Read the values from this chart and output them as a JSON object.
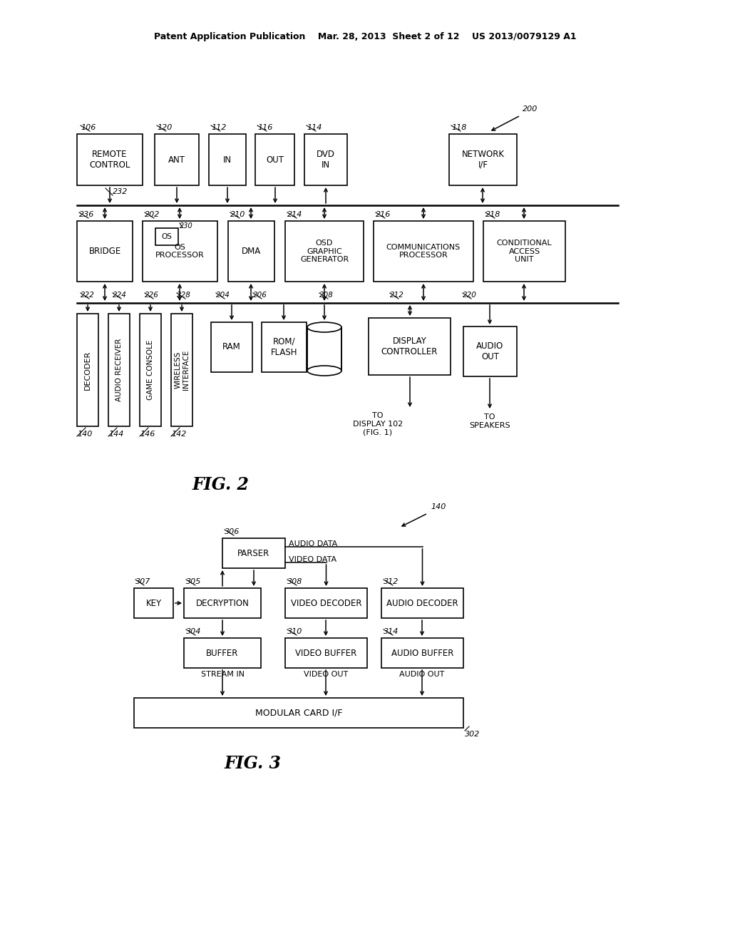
{
  "bg_color": "#ffffff",
  "header": "Patent Application Publication    Mar. 28, 2013  Sheet 2 of 12    US 2013/0079129 A1",
  "fig2_label": "FIG. 2",
  "fig3_label": "FIG. 3"
}
